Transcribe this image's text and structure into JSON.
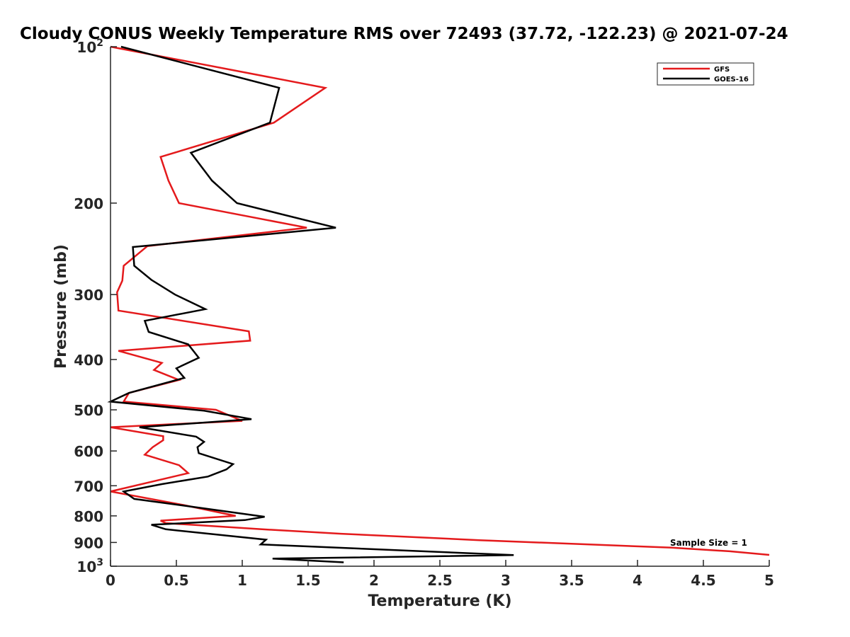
{
  "chart_data": {
    "type": "line",
    "title": "Cloudy CONUS Weekly Temperature RMS over 72493 (37.72, -122.23) @ 2021-07-24",
    "xlabel": "Temperature (K)",
    "ylabel": "Pressure (mb)",
    "xlim": [
      0,
      5
    ],
    "ylim": [
      100,
      1000
    ],
    "y_scale": "log",
    "y_reversed": true,
    "x_ticks": [
      "0",
      "0.5",
      "1",
      "1.5",
      "2",
      "2.5",
      "3",
      "3.5",
      "4",
      "4.5",
      "5"
    ],
    "y_ticks": [
      {
        "value": 100,
        "base": "10",
        "exp": "2"
      },
      {
        "value": 200,
        "label": "200"
      },
      {
        "value": 300,
        "label": "300"
      },
      {
        "value": 400,
        "label": "400"
      },
      {
        "value": 500,
        "label": "500"
      },
      {
        "value": 600,
        "label": "600"
      },
      {
        "value": 700,
        "label": "700"
      },
      {
        "value": 800,
        "label": "800"
      },
      {
        "value": 900,
        "label": "900"
      },
      {
        "value": 1000,
        "base": "10",
        "exp": "3"
      }
    ],
    "grid": false,
    "legend_position": "top-right",
    "annotation": "Sample Size = 1",
    "series": [
      {
        "name": "GFS",
        "color": "#e41a1c",
        "points": [
          [
            0.0,
            100
          ],
          [
            1.63,
            120
          ],
          [
            1.24,
            140
          ],
          [
            0.38,
            163
          ],
          [
            0.44,
            181
          ],
          [
            0.52,
            200
          ],
          [
            1.49,
            223
          ],
          [
            0.28,
            242
          ],
          [
            0.1,
            264
          ],
          [
            0.09,
            282
          ],
          [
            0.05,
            297
          ],
          [
            0.06,
            322
          ],
          [
            1.05,
            353
          ],
          [
            1.06,
            368
          ],
          [
            0.06,
            385
          ],
          [
            0.39,
            406
          ],
          [
            0.33,
            419
          ],
          [
            0.52,
            438
          ],
          [
            0.14,
            464
          ],
          [
            0.1,
            482
          ],
          [
            0.8,
            500
          ],
          [
            1.0,
            525
          ],
          [
            0.0,
            540
          ],
          [
            0.4,
            562
          ],
          [
            0.4,
            572
          ],
          [
            0.32,
            590
          ],
          [
            0.26,
            610
          ],
          [
            0.52,
            639
          ],
          [
            0.59,
            662
          ],
          [
            0.0,
            718
          ],
          [
            0.55,
            762
          ],
          [
            0.95,
            800
          ],
          [
            0.38,
            817
          ],
          [
            0.42,
            826
          ],
          [
            1.15,
            849
          ],
          [
            1.75,
            866
          ],
          [
            2.8,
            891
          ],
          [
            4.26,
            921
          ],
          [
            4.7,
            936
          ],
          [
            5.0,
            951
          ]
        ]
      },
      {
        "name": "GOES-16",
        "color": "#000000",
        "points": [
          [
            0.08,
            100
          ],
          [
            1.28,
            120
          ],
          [
            1.21,
            140
          ],
          [
            0.61,
            160
          ],
          [
            0.77,
            181
          ],
          [
            0.96,
            200
          ],
          [
            1.71,
            223
          ],
          [
            0.17,
            243
          ],
          [
            0.18,
            264
          ],
          [
            0.31,
            281
          ],
          [
            0.49,
            300
          ],
          [
            0.72,
            320
          ],
          [
            0.26,
            337
          ],
          [
            0.29,
            354
          ],
          [
            0.59,
            374
          ],
          [
            0.67,
            397
          ],
          [
            0.5,
            416
          ],
          [
            0.56,
            434
          ],
          [
            0.14,
            464
          ],
          [
            0.0,
            482
          ],
          [
            0.71,
            502
          ],
          [
            1.07,
            521
          ],
          [
            0.22,
            540
          ],
          [
            0.65,
            563
          ],
          [
            0.71,
            576
          ],
          [
            0.66,
            590
          ],
          [
            0.67,
            606
          ],
          [
            0.93,
            636
          ],
          [
            0.88,
            651
          ],
          [
            0.74,
            672
          ],
          [
            0.39,
            695
          ],
          [
            0.1,
            718
          ],
          [
            0.18,
            742
          ],
          [
            0.65,
            770
          ],
          [
            1.17,
            803
          ],
          [
            1.02,
            815
          ],
          [
            0.31,
            832
          ],
          [
            0.42,
            849
          ],
          [
            1.18,
            889
          ],
          [
            1.14,
            908
          ],
          [
            3.06,
            952
          ],
          [
            1.23,
            967
          ],
          [
            1.77,
            983
          ]
        ]
      }
    ]
  }
}
